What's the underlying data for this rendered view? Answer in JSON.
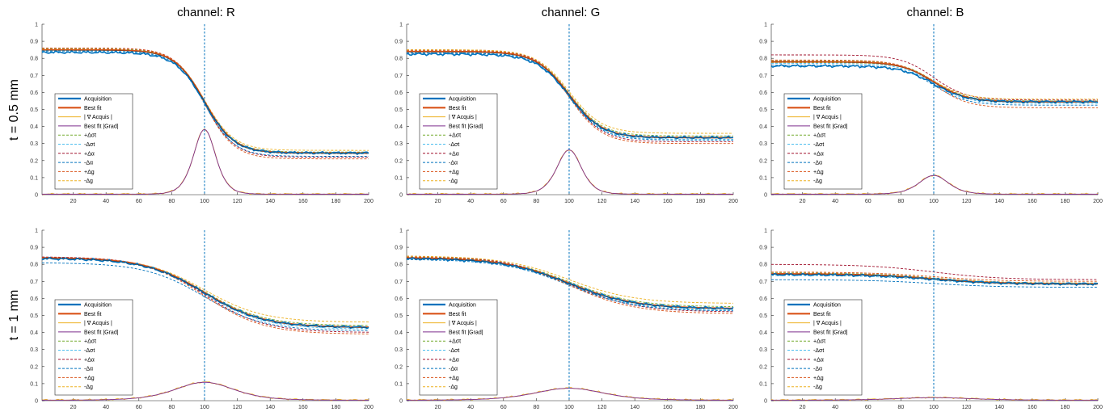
{
  "figure": {
    "column_titles": [
      "channel: R",
      "channel: G",
      "channel: B"
    ],
    "row_labels": [
      "t = 0.5 mm",
      "t = 1 mm"
    ]
  },
  "legend_entries": [
    {
      "label": "Acquisition",
      "color": "#0072BD",
      "style": "solid-thick"
    },
    {
      "label": "Best fit",
      "color": "#D95319",
      "style": "solid-thick"
    },
    {
      "label": "| ∇ Acquis |",
      "color": "#EDB120",
      "style": "solid"
    },
    {
      "label": "Best fit |Grad|",
      "color": "#7E2F8E",
      "style": "solid"
    },
    {
      "label": "+Δσt",
      "color": "#77AC30",
      "style": "dashed"
    },
    {
      "label": "-Δσt",
      "color": "#4DBEEE",
      "style": "dashed"
    },
    {
      "label": "+Δα",
      "color": "#A2142F",
      "style": "dashed"
    },
    {
      "label": "-Δα",
      "color": "#0072BD",
      "style": "dashed"
    },
    {
      "label": "+Δg",
      "color": "#D95319",
      "style": "dashed"
    },
    {
      "label": "-Δg",
      "color": "#EDB120",
      "style": "dashed"
    }
  ],
  "axis": {
    "xlim": [
      1,
      200
    ],
    "ylim": [
      0,
      1
    ],
    "x_ticks": [
      20,
      40,
      60,
      80,
      100,
      120,
      140,
      160,
      180,
      200
    ],
    "y_ticks": [
      0,
      0.1,
      0.2,
      0.3,
      0.4,
      0.5,
      0.6,
      0.7,
      0.8,
      0.9,
      1
    ],
    "y_tick_labels": [
      "0",
      "0.1",
      "0.2",
      "0.3",
      "0.4",
      "0.5",
      "0.6",
      "0.7",
      "0.8",
      "0.9",
      "1"
    ],
    "vline_x": 100,
    "vline_color": "#0072BD"
  },
  "chart_data": [
    {
      "type": "line",
      "channel": "R",
      "thickness": "0.5 mm",
      "legend": "bottom-left",
      "edge": {
        "left": 0.85,
        "right": 0.245,
        "center": 100,
        "width": 9
      },
      "acquisition": {
        "left": 0.835,
        "right": 0.245
      },
      "gradient_peak": 0.38,
      "gradient_width": 4.5,
      "variations": {
        "+Δσt": [
          0.855,
          0.25
        ],
        "-Δσt": [
          0.845,
          0.24
        ],
        "+Δα": [
          0.86,
          0.22
        ],
        "-Δα": [
          0.84,
          0.225
        ],
        "+Δg": [
          0.86,
          0.21
        ],
        "-Δg": [
          0.85,
          0.26
        ]
      }
    },
    {
      "type": "line",
      "channel": "G",
      "thickness": "0.5 mm",
      "legend": "bottom-left",
      "edge": {
        "left": 0.84,
        "right": 0.335,
        "center": 100,
        "width": 10
      },
      "acquisition": {
        "left": 0.825,
        "right": 0.335
      },
      "gradient_peak": 0.26,
      "gradient_width": 5,
      "variations": {
        "+Δσt": [
          0.845,
          0.345
        ],
        "-Δσt": [
          0.835,
          0.325
        ],
        "+Δα": [
          0.85,
          0.31
        ],
        "-Δα": [
          0.83,
          0.32
        ],
        "+Δg": [
          0.845,
          0.3
        ],
        "-Δg": [
          0.85,
          0.36
        ]
      }
    },
    {
      "type": "line",
      "channel": "B",
      "thickness": "0.5 mm",
      "legend": "bottom-left",
      "edge": {
        "left": 0.78,
        "right": 0.545,
        "center": 100,
        "width": 10
      },
      "acquisition": {
        "left": 0.755,
        "right": 0.545
      },
      "gradient_peak": 0.11,
      "gradient_width": 6,
      "variations": {
        "+Δσt": [
          0.785,
          0.55
        ],
        "-Δσt": [
          0.77,
          0.535
        ],
        "+Δα": [
          0.82,
          0.555
        ],
        "-Δα": [
          0.76,
          0.525
        ],
        "+Δg": [
          0.79,
          0.51
        ],
        "-Δg": [
          0.775,
          0.56
        ]
      }
    },
    {
      "type": "line",
      "channel": "R",
      "thickness": "1 mm",
      "legend": "bottom-left",
      "edge": {
        "left": 0.84,
        "right": 0.43,
        "center": 100,
        "width": 18
      },
      "acquisition": {
        "left": 0.835,
        "right": 0.43
      },
      "gradient_peak": 0.105,
      "gradient_width": 12,
      "variations": {
        "+Δσt": [
          0.84,
          0.44
        ],
        "-Δσt": [
          0.835,
          0.42
        ],
        "+Δα": [
          0.845,
          0.4
        ],
        "-Δα": [
          0.81,
          0.41
        ],
        "+Δg": [
          0.84,
          0.39
        ],
        "-Δg": [
          0.84,
          0.46
        ]
      }
    },
    {
      "type": "line",
      "channel": "G",
      "thickness": "1 mm",
      "legend": "bottom-left",
      "edge": {
        "left": 0.84,
        "right": 0.54,
        "center": 100,
        "width": 20
      },
      "acquisition": {
        "left": 0.835,
        "right": 0.54
      },
      "gradient_peak": 0.07,
      "gradient_width": 14,
      "variations": {
        "+Δσt": [
          0.845,
          0.55
        ],
        "-Δσt": [
          0.835,
          0.53
        ],
        "+Δα": [
          0.85,
          0.52
        ],
        "-Δα": [
          0.83,
          0.525
        ],
        "+Δg": [
          0.845,
          0.51
        ],
        "-Δg": [
          0.85,
          0.57
        ]
      }
    },
    {
      "type": "line",
      "channel": "B",
      "thickness": "1 mm",
      "legend": "bottom-left",
      "edge": {
        "left": 0.745,
        "right": 0.685,
        "center": 100,
        "width": 20
      },
      "acquisition": {
        "left": 0.74,
        "right": 0.685
      },
      "gradient_peak": 0.015,
      "gradient_width": 15,
      "variations": {
        "+Δσt": [
          0.75,
          0.69
        ],
        "-Δσt": [
          0.735,
          0.68
        ],
        "+Δα": [
          0.8,
          0.71
        ],
        "-Δα": [
          0.71,
          0.665
        ],
        "+Δg": [
          0.755,
          0.7
        ],
        "-Δg": [
          0.745,
          0.69
        ]
      }
    }
  ]
}
